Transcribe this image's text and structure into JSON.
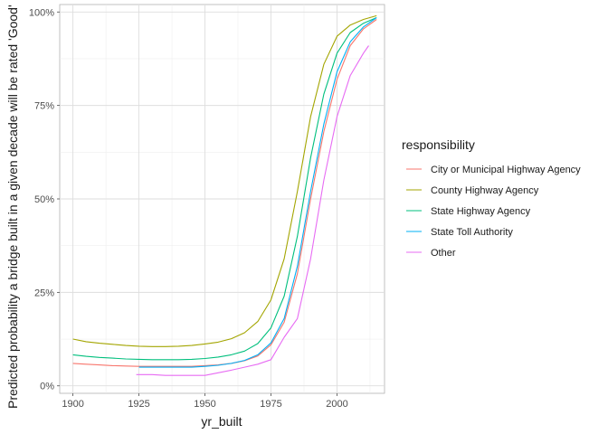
{
  "chart_data": {
    "type": "line",
    "title": "",
    "xlabel": "yr_built",
    "ylabel": "Predicted probability a bridge built in a given decade will be rated 'Good'",
    "xlim": [
      1895,
      2018
    ],
    "ylim": [
      -0.02,
      1.02
    ],
    "x_ticks": [
      1900,
      1925,
      1950,
      1975,
      2000
    ],
    "x_tick_labels": [
      "1900",
      "1925",
      "1950",
      "1975",
      "2000"
    ],
    "y_ticks": [
      0,
      0.25,
      0.5,
      0.75,
      1.0
    ],
    "y_tick_labels": [
      "0%",
      "25%",
      "50%",
      "75%",
      "100%"
    ],
    "grid": true,
    "legend": {
      "title": "responsibility",
      "position": "right"
    },
    "series": [
      {
        "name": "City or Municipal Highway Agency",
        "color": "#F8766D",
        "x": [
          1900,
          1905,
          1910,
          1915,
          1920,
          1925,
          1930,
          1935,
          1940,
          1945,
          1950,
          1955,
          1960,
          1965,
          1970,
          1975,
          1980,
          1985,
          1990,
          1995,
          2000,
          2005,
          2010,
          2015
        ],
        "y": [
          0.06,
          0.058,
          0.056,
          0.054,
          0.053,
          0.052,
          0.052,
          0.052,
          0.052,
          0.052,
          0.054,
          0.056,
          0.06,
          0.067,
          0.08,
          0.11,
          0.17,
          0.3,
          0.5,
          0.68,
          0.82,
          0.91,
          0.955,
          0.98
        ]
      },
      {
        "name": "County Highway Agency",
        "color": "#A3A500",
        "x": [
          1900,
          1905,
          1910,
          1915,
          1920,
          1925,
          1930,
          1935,
          1940,
          1945,
          1950,
          1955,
          1960,
          1965,
          1970,
          1975,
          1980,
          1985,
          1990,
          1995,
          2000,
          2005,
          2010,
          2015
        ],
        "y": [
          0.125,
          0.118,
          0.114,
          0.111,
          0.108,
          0.106,
          0.105,
          0.105,
          0.106,
          0.108,
          0.112,
          0.117,
          0.126,
          0.142,
          0.172,
          0.23,
          0.34,
          0.52,
          0.72,
          0.86,
          0.935,
          0.965,
          0.98,
          0.99
        ]
      },
      {
        "name": "State Highway Agency",
        "color": "#00BF7D",
        "x": [
          1900,
          1905,
          1910,
          1915,
          1920,
          1925,
          1930,
          1935,
          1940,
          1945,
          1950,
          1955,
          1960,
          1965,
          1970,
          1975,
          1980,
          1985,
          1990,
          1995,
          2000,
          2005,
          2010,
          2015
        ],
        "y": [
          0.083,
          0.079,
          0.076,
          0.074,
          0.072,
          0.071,
          0.07,
          0.07,
          0.07,
          0.071,
          0.073,
          0.077,
          0.083,
          0.093,
          0.113,
          0.155,
          0.24,
          0.4,
          0.61,
          0.78,
          0.89,
          0.945,
          0.97,
          0.985
        ]
      },
      {
        "name": "State Toll Authority",
        "color": "#00B0F6",
        "x": [
          1925,
          1930,
          1935,
          1940,
          1945,
          1950,
          1955,
          1960,
          1965,
          1970,
          1975,
          1980,
          1985,
          1990,
          1995,
          2000,
          2005,
          2010,
          2015
        ],
        "y": [
          0.05,
          0.05,
          0.05,
          0.05,
          0.05,
          0.052,
          0.055,
          0.06,
          0.068,
          0.083,
          0.115,
          0.18,
          0.32,
          0.52,
          0.7,
          0.84,
          0.92,
          0.96,
          0.985
        ]
      },
      {
        "name": "Other",
        "color": "#E76BF3",
        "x": [
          1924,
          1930,
          1935,
          1940,
          1945,
          1950,
          1955,
          1960,
          1965,
          1970,
          1975,
          1980,
          1985,
          1990,
          1995,
          2000,
          2005,
          2010,
          2012
        ],
        "y": [
          0.03,
          0.03,
          0.028,
          0.028,
          0.028,
          0.028,
          0.035,
          0.042,
          0.05,
          0.058,
          0.07,
          0.13,
          0.18,
          0.34,
          0.55,
          0.72,
          0.83,
          0.89,
          0.91
        ]
      }
    ]
  }
}
